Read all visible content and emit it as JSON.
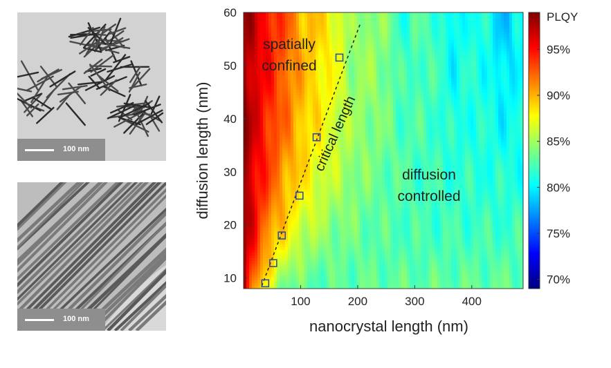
{
  "panels": {
    "top_scalebar_label": "100 nm",
    "bottom_scalebar_label": "100 nm"
  },
  "chart_data": {
    "type": "heatmap",
    "xlabel": "nanocrystal length (nm)",
    "ylabel": "diffusion length (nm)",
    "xlim": [
      0,
      490
    ],
    "ylim": [
      8,
      60
    ],
    "x_ticks": [
      100,
      200,
      300,
      400
    ],
    "y_ticks": [
      10,
      20,
      30,
      40,
      50,
      60
    ],
    "colorbar": {
      "title": "PLQY",
      "range": [
        69,
        99
      ],
      "ticks": [
        {
          "value": 95,
          "label": "95%"
        },
        {
          "value": 90,
          "label": "90%"
        },
        {
          "value": 85,
          "label": "85%"
        },
        {
          "value": 80,
          "label": "80%"
        },
        {
          "value": 75,
          "label": "75%"
        },
        {
          "value": 70,
          "label": "70%"
        }
      ],
      "colormap": [
        "#00007f",
        "#0000ff",
        "#007fff",
        "#00ffff",
        "#7fff7f",
        "#ffff00",
        "#ff7f00",
        "#ff0000",
        "#7f0000"
      ]
    },
    "critical_points": [
      {
        "x": 38,
        "y": 9
      },
      {
        "x": 52,
        "y": 12.8
      },
      {
        "x": 67,
        "y": 18
      },
      {
        "x": 98,
        "y": 25.5
      },
      {
        "x": 128,
        "y": 36.5
      },
      {
        "x": 168,
        "y": 51.5
      }
    ],
    "critical_line": [
      {
        "x": 32,
        "y": 8.5
      },
      {
        "x": 205,
        "y": 58
      }
    ],
    "annotations": {
      "spatially_confined": [
        "spatially",
        "confined"
      ],
      "diffusion_controlled": [
        "diffusion",
        "controlled"
      ],
      "critical_length": "critical length"
    }
  }
}
